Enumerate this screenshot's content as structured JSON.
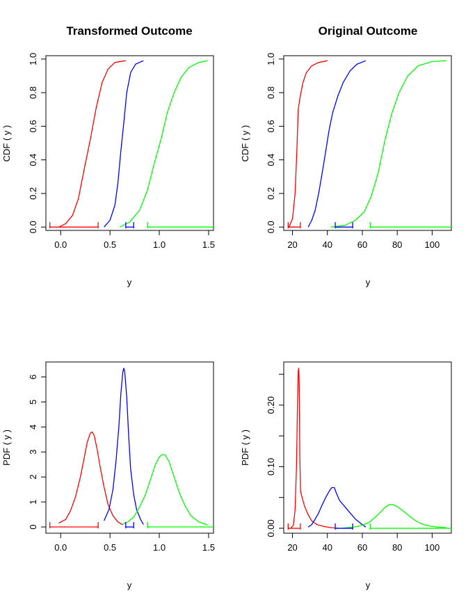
{
  "colors": {
    "red": "#ff0000",
    "blue": "#0000ff",
    "green": "#00ff00"
  },
  "chart_data": [
    {
      "type": "line",
      "title": "Transformed  Outcome",
      "xlabel": "y",
      "ylabel": "CDF ( y )",
      "xlim": [
        -0.15,
        1.55
      ],
      "ylim": [
        -0.02,
        1.02
      ],
      "xticks": [
        "0.0",
        "0.5",
        "1.0",
        "1.5"
      ],
      "yticks": [
        "0.0",
        "0.2",
        "0.4",
        "0.6",
        "0.8",
        "1.0"
      ],
      "series": [
        {
          "color": "red",
          "points": [
            [
              -0.02,
              0.0
            ],
            [
              0.05,
              0.02
            ],
            [
              0.12,
              0.07
            ],
            [
              0.18,
              0.17
            ],
            [
              0.24,
              0.35
            ],
            [
              0.3,
              0.52
            ],
            [
              0.36,
              0.71
            ],
            [
              0.42,
              0.86
            ],
            [
              0.48,
              0.94
            ],
            [
              0.55,
              0.98
            ],
            [
              0.66,
              0.99
            ]
          ]
        },
        {
          "color": "blue",
          "points": [
            [
              0.44,
              0.0
            ],
            [
              0.5,
              0.04
            ],
            [
              0.55,
              0.13
            ],
            [
              0.58,
              0.26
            ],
            [
              0.61,
              0.45
            ],
            [
              0.64,
              0.62
            ],
            [
              0.67,
              0.8
            ],
            [
              0.71,
              0.92
            ],
            [
              0.76,
              0.97
            ],
            [
              0.84,
              0.99
            ]
          ]
        },
        {
          "color": "green",
          "points": [
            [
              0.6,
              0.0
            ],
            [
              0.7,
              0.03
            ],
            [
              0.8,
              0.1
            ],
            [
              0.88,
              0.22
            ],
            [
              0.95,
              0.38
            ],
            [
              1.02,
              0.53
            ],
            [
              1.08,
              0.68
            ],
            [
              1.15,
              0.8
            ],
            [
              1.22,
              0.89
            ],
            [
              1.3,
              0.95
            ],
            [
              1.4,
              0.98
            ],
            [
              1.49,
              0.99
            ]
          ]
        }
      ],
      "intervals": [
        {
          "color": "red",
          "y": 0.0,
          "from": -0.11,
          "to": 0.38
        },
        {
          "color": "blue",
          "y": 0.0,
          "from": 0.66,
          "to": 0.74
        },
        {
          "color": "green",
          "y": 0.0,
          "from": 0.88,
          "to": 1.55
        }
      ]
    },
    {
      "type": "line",
      "title": "Original Outcome",
      "xlabel": "y",
      "ylabel": "CDF ( y )",
      "xlim": [
        15,
        111
      ],
      "ylim": [
        -0.02,
        1.02
      ],
      "xticks": [
        "20",
        "40",
        "60",
        "80",
        "100"
      ],
      "yticks": [
        "0.0",
        "0.2",
        "0.4",
        "0.6",
        "0.8",
        "1.0"
      ],
      "series": [
        {
          "color": "red",
          "points": [
            [
              18,
              0.0
            ],
            [
              20,
              0.05
            ],
            [
              21.5,
              0.2
            ],
            [
              22.5,
              0.45
            ],
            [
              23.3,
              0.7
            ],
            [
              24.5,
              0.78
            ],
            [
              26,
              0.86
            ],
            [
              28,
              0.92
            ],
            [
              31,
              0.96
            ],
            [
              35,
              0.98
            ],
            [
              40,
              0.99
            ]
          ]
        },
        {
          "color": "blue",
          "points": [
            [
              29,
              0.0
            ],
            [
              31,
              0.04
            ],
            [
              33,
              0.1
            ],
            [
              35,
              0.2
            ],
            [
              37,
              0.32
            ],
            [
              39,
              0.45
            ],
            [
              41,
              0.58
            ],
            [
              43,
              0.68
            ],
            [
              46,
              0.78
            ],
            [
              49,
              0.86
            ],
            [
              53,
              0.93
            ],
            [
              57,
              0.97
            ],
            [
              62,
              0.99
            ]
          ]
        },
        {
          "color": "green",
          "points": [
            [
              42,
              0.0
            ],
            [
              50,
              0.01
            ],
            [
              56,
              0.04
            ],
            [
              61,
              0.09
            ],
            [
              65,
              0.18
            ],
            [
              69,
              0.32
            ],
            [
              73,
              0.52
            ],
            [
              77,
              0.68
            ],
            [
              81,
              0.8
            ],
            [
              86,
              0.9
            ],
            [
              92,
              0.96
            ],
            [
              100,
              0.985
            ],
            [
              108,
              0.99
            ]
          ]
        }
      ],
      "intervals": [
        {
          "color": "red",
          "y": 0.0,
          "from": 17.5,
          "to": 24.5
        },
        {
          "color": "blue",
          "y": 0.0,
          "from": 44.5,
          "to": 54.5
        },
        {
          "color": "green",
          "y": 0.0,
          "from": 64.5,
          "to": 111
        }
      ]
    },
    {
      "type": "line",
      "title": "",
      "xlabel": "y",
      "ylabel": "PDF ( y )",
      "xlim": [
        -0.15,
        1.55
      ],
      "ylim": [
        -0.25,
        6.6
      ],
      "xticks": [
        "0.0",
        "0.5",
        "1.0",
        "1.5"
      ],
      "yticks": [
        "0",
        "1",
        "2",
        "3",
        "4",
        "5",
        "6"
      ],
      "series": [
        {
          "color": "red",
          "points": [
            [
              -0.02,
              0.15
            ],
            [
              0.05,
              0.3
            ],
            [
              0.1,
              0.65
            ],
            [
              0.15,
              1.2
            ],
            [
              0.2,
              2.0
            ],
            [
              0.24,
              2.8
            ],
            [
              0.27,
              3.4
            ],
            [
              0.3,
              3.75
            ],
            [
              0.32,
              3.8
            ],
            [
              0.34,
              3.65
            ],
            [
              0.37,
              3.1
            ],
            [
              0.4,
              2.4
            ],
            [
              0.44,
              1.6
            ],
            [
              0.48,
              0.9
            ],
            [
              0.53,
              0.45
            ],
            [
              0.58,
              0.2
            ],
            [
              0.63,
              0.08
            ]
          ]
        },
        {
          "color": "blue",
          "points": [
            [
              0.44,
              0.25
            ],
            [
              0.49,
              0.7
            ],
            [
              0.53,
              1.5
            ],
            [
              0.56,
              2.6
            ],
            [
              0.59,
              4.0
            ],
            [
              0.61,
              5.3
            ],
            [
              0.63,
              6.2
            ],
            [
              0.64,
              6.35
            ],
            [
              0.65,
              6.2
            ],
            [
              0.67,
              5.2
            ],
            [
              0.69,
              3.6
            ],
            [
              0.71,
              2.3
            ],
            [
              0.74,
              1.3
            ],
            [
              0.77,
              0.7
            ],
            [
              0.81,
              0.3
            ],
            [
              0.84,
              0.1
            ]
          ]
        },
        {
          "color": "green",
          "points": [
            [
              0.62,
              0.1
            ],
            [
              0.68,
              0.2
            ],
            [
              0.74,
              0.4
            ],
            [
              0.8,
              0.8
            ],
            [
              0.86,
              1.3
            ],
            [
              0.91,
              1.9
            ],
            [
              0.96,
              2.5
            ],
            [
              1.0,
              2.8
            ],
            [
              1.03,
              2.9
            ],
            [
              1.06,
              2.88
            ],
            [
              1.1,
              2.6
            ],
            [
              1.15,
              2.0
            ],
            [
              1.2,
              1.4
            ],
            [
              1.26,
              0.85
            ],
            [
              1.32,
              0.45
            ],
            [
              1.4,
              0.2
            ],
            [
              1.49,
              0.08
            ]
          ]
        }
      ],
      "intervals": [
        {
          "color": "red",
          "y": 0.0,
          "from": -0.11,
          "to": 0.38
        },
        {
          "color": "blue",
          "y": 0.0,
          "from": 0.66,
          "to": 0.74
        },
        {
          "color": "green",
          "y": 0.0,
          "from": 0.88,
          "to": 1.55
        }
      ]
    },
    {
      "type": "line",
      "title": "",
      "xlabel": "y",
      "ylabel": "PDF ( y )",
      "xlim": [
        15,
        111
      ],
      "ylim": [
        -0.008,
        0.27
      ],
      "xticks": [
        "20",
        "40",
        "60",
        "80",
        "100"
      ],
      "yticks": [
        "0.00",
        "0.10",
        "0.20"
      ],
      "yticks_minor": [
        0.05,
        0.15,
        0.25
      ],
      "series": [
        {
          "color": "red",
          "points": [
            [
              19,
              0.0
            ],
            [
              20.5,
              0.005
            ],
            [
              21.5,
              0.03
            ],
            [
              22.3,
              0.1
            ],
            [
              22.8,
              0.19
            ],
            [
              23.3,
              0.255
            ],
            [
              23.6,
              0.26
            ],
            [
              23.9,
              0.23
            ],
            [
              24.2,
              0.12
            ],
            [
              24.6,
              0.06
            ],
            [
              25.5,
              0.05
            ],
            [
              27,
              0.035
            ],
            [
              29,
              0.022
            ],
            [
              31,
              0.012
            ],
            [
              34,
              0.006
            ],
            [
              38,
              0.003
            ],
            [
              42,
              0.001
            ],
            [
              46,
              0.0
            ]
          ]
        },
        {
          "color": "blue",
          "points": [
            [
              29,
              0.002
            ],
            [
              31,
              0.006
            ],
            [
              33,
              0.015
            ],
            [
              35,
              0.025
            ],
            [
              37,
              0.038
            ],
            [
              39,
              0.05
            ],
            [
              41,
              0.06
            ],
            [
              42.5,
              0.066
            ],
            [
              44,
              0.066
            ],
            [
              45,
              0.058
            ],
            [
              47,
              0.045
            ],
            [
              50,
              0.035
            ],
            [
              53,
              0.025
            ],
            [
              56,
              0.015
            ],
            [
              59,
              0.008
            ],
            [
              62,
              0.002
            ]
          ]
        },
        {
          "color": "green",
          "points": [
            [
              48,
              0.0
            ],
            [
              55,
              0.002
            ],
            [
              60,
              0.005
            ],
            [
              64,
              0.01
            ],
            [
              67,
              0.017
            ],
            [
              70,
              0.025
            ],
            [
              73,
              0.034
            ],
            [
              75,
              0.038
            ],
            [
              77,
              0.039
            ],
            [
              80,
              0.035
            ],
            [
              83,
              0.029
            ],
            [
              86,
              0.022
            ],
            [
              90,
              0.013
            ],
            [
              94,
              0.007
            ],
            [
              98,
              0.004
            ],
            [
              103,
              0.002
            ],
            [
              108,
              0.001
            ]
          ]
        }
      ],
      "intervals": [
        {
          "color": "red",
          "y": 0.0,
          "from": 17.5,
          "to": 24.5
        },
        {
          "color": "blue",
          "y": 0.0,
          "from": 44.5,
          "to": 54.5
        },
        {
          "color": "green",
          "y": 0.0,
          "from": 64.5,
          "to": 111
        }
      ]
    }
  ]
}
